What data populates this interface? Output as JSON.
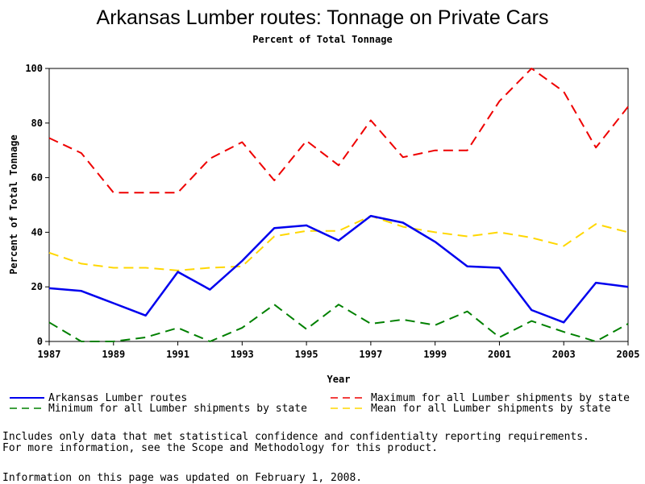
{
  "chart_data": {
    "type": "line",
    "title": "Arkansas Lumber routes: Tonnage on Private Cars",
    "subtitle": "Percent of Total Tonnage",
    "xlabel": "Year",
    "ylabel": "Percent of Total Tonnage",
    "xlim": [
      1987,
      2005
    ],
    "ylim": [
      0,
      100
    ],
    "x": [
      1987,
      1988,
      1989,
      1990,
      1991,
      1992,
      1993,
      1994,
      1995,
      1996,
      1997,
      1998,
      1999,
      2000,
      2001,
      2002,
      2003,
      2004,
      2005
    ],
    "x_ticks": [
      "1987",
      "1989",
      "1991",
      "1993",
      "1995",
      "1997",
      "1999",
      "2001",
      "2003",
      "2005"
    ],
    "y_ticks": [
      "0",
      "20",
      "40",
      "60",
      "80",
      "100"
    ],
    "grid": false,
    "legend_position": "bottom",
    "series": [
      {
        "name": "Arkansas Lumber routes",
        "color": "#0000ee",
        "style": "solid",
        "values": [
          19.5,
          18.5,
          14,
          9.5,
          25.5,
          19,
          29.5,
          41.5,
          42.5,
          37,
          46,
          43.5,
          36.5,
          27.5,
          27,
          11.5,
          7,
          21.5,
          20
        ]
      },
      {
        "name": "Maximum for all Lumber shipments by state",
        "color": "#ee0000",
        "style": "dashed",
        "values": [
          74.5,
          69,
          54.5,
          54.5,
          54.5,
          67,
          73,
          59,
          73.5,
          64.5,
          81,
          67.5,
          70,
          70,
          88,
          100,
          91.5,
          71,
          86
        ]
      },
      {
        "name": "Minimum for all Lumber shipments by state",
        "color": "#008000",
        "style": "dashed",
        "values": [
          7,
          0,
          0,
          1.5,
          5,
          0,
          5,
          13.5,
          4.5,
          13.5,
          6.5,
          8,
          6,
          11,
          1.5,
          7.5,
          3.5,
          0,
          6.5
        ]
      },
      {
        "name": "Mean for all Lumber shipments by state",
        "color": "#ffd700",
        "style": "dashed",
        "values": [
          32.5,
          28.5,
          27,
          27,
          26,
          27,
          27.5,
          38.5,
          40.5,
          40.5,
          46,
          42,
          40,
          38.5,
          40,
          38,
          35,
          43,
          40
        ]
      }
    ]
  },
  "notes": {
    "line1": "Includes only data that met statistical confidence and confidentialty reporting requirements.",
    "line2": "For more information, see the Scope and Methodology for this product.",
    "updated": "Information on this page was updated on February 1, 2008."
  }
}
